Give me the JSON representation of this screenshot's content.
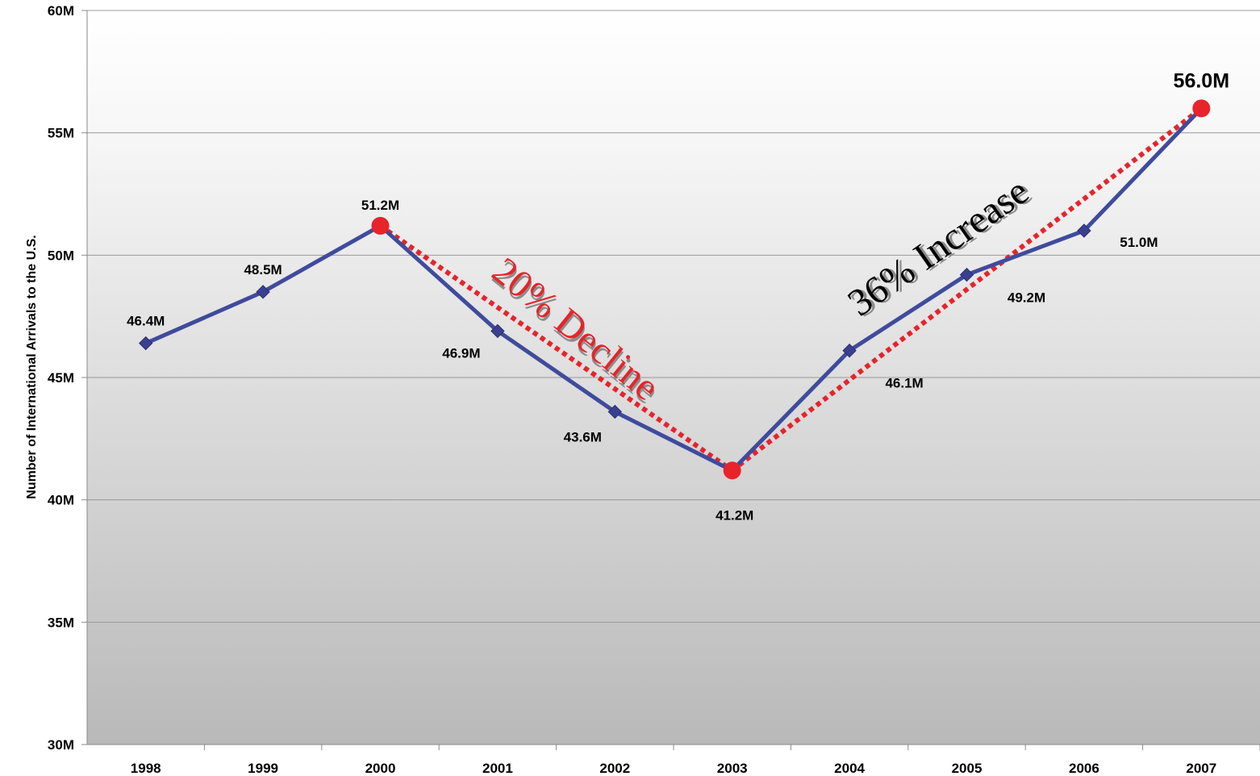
{
  "chart_data": {
    "type": "line",
    "title": "",
    "xlabel": "",
    "ylabel": "Number of International Arrivals to the U.S.",
    "categories": [
      "1998",
      "1999",
      "2000",
      "2001",
      "2002",
      "2003",
      "2004",
      "2005",
      "2006",
      "2007"
    ],
    "series": [
      {
        "values": [
          46.4,
          48.5,
          51.2,
          46.9,
          43.6,
          41.2,
          46.1,
          49.2,
          51.0,
          56.0
        ],
        "color": "#3F4B9C"
      }
    ],
    "data_labels": [
      "46.4M",
      "48.5M",
      "51.2M",
      "46.9M",
      "43.6M",
      "41.2M",
      "46.1M",
      "49.2M",
      "51.0M",
      "56.0M"
    ],
    "ylim": [
      30,
      60
    ],
    "yticks": [
      30,
      35,
      40,
      45,
      50,
      55,
      60
    ],
    "ytick_labels": [
      "30M",
      "35M",
      "40M",
      "45M",
      "50M",
      "55M",
      "60M"
    ],
    "grid": true,
    "trend_lines": [
      {
        "from": "2000",
        "to": "2003",
        "label": "20% Decline",
        "color": "#E8232A"
      },
      {
        "from": "2003",
        "to": "2007",
        "label": "36% Increase",
        "color": "#E8232A"
      }
    ],
    "annotation_colors": {
      "decline": "#E8232A",
      "increase": "#000000"
    }
  }
}
